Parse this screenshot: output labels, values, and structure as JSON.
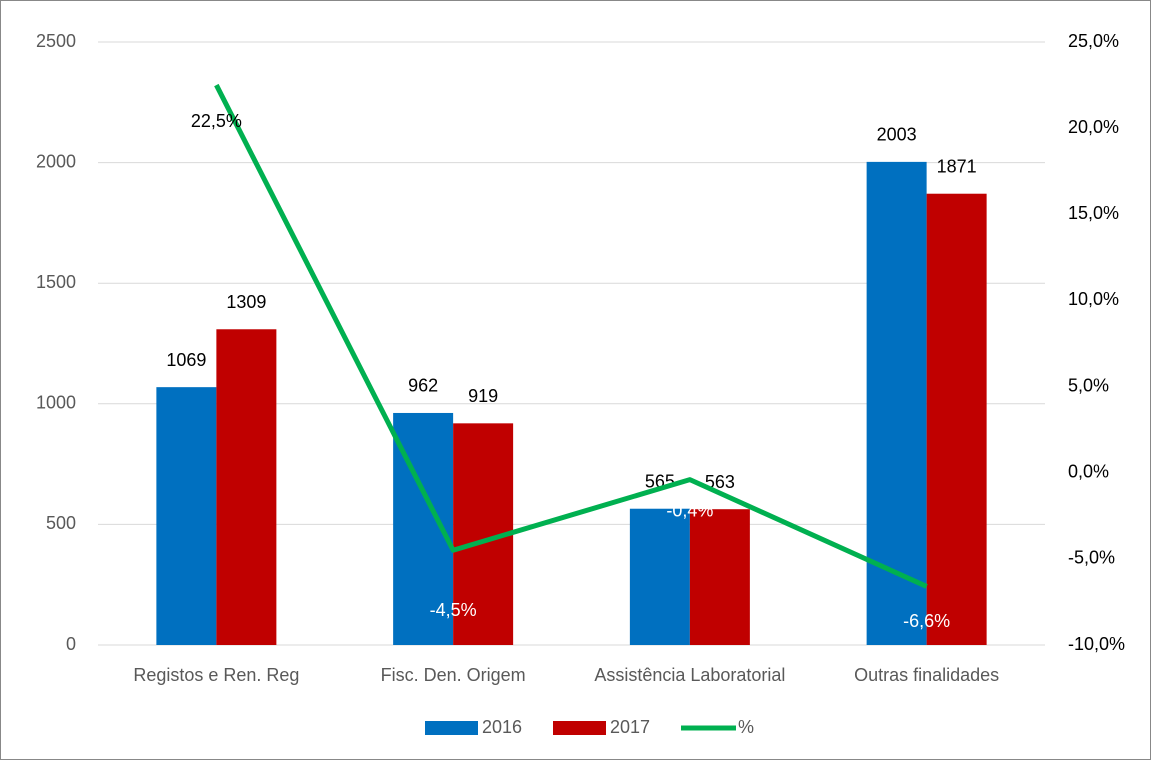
{
  "chart_data": {
    "type": "bar",
    "categories": [
      "Registos e Ren. Reg",
      "Fisc. Den. Origem",
      "Assistência Laboratorial",
      "Outras finalidades"
    ],
    "series": [
      {
        "name": "2016",
        "color": "#0070c0",
        "values": [
          1069,
          962,
          565,
          2003
        ]
      },
      {
        "name": "2017",
        "color": "#c00000",
        "values": [
          1309,
          919,
          563,
          1871
        ]
      },
      {
        "name": "%",
        "color": "#00b050",
        "type": "line",
        "axis": "y2",
        "values": [
          22.5,
          -4.5,
          -0.4,
          -6.6
        ],
        "value_labels": [
          "22,5%",
          "-4,5%",
          "-0,4%",
          "-6,6%"
        ]
      }
    ],
    "ylim": [
      0,
      2500
    ],
    "yticks": [
      0,
      500,
      1000,
      1500,
      2000,
      2500
    ],
    "y2lim": [
      -10,
      25
    ],
    "y2ticks": [
      {
        "value": -10,
        "label": "-10,0%"
      },
      {
        "value": -5,
        "label": "-5,0%"
      },
      {
        "value": 0,
        "label": "0,0%"
      },
      {
        "value": 5,
        "label": "5,0%"
      },
      {
        "value": 10,
        "label": "10,0%"
      },
      {
        "value": 15,
        "label": "15,0%"
      },
      {
        "value": 20,
        "label": "20,0%"
      },
      {
        "value": 25,
        "label": "25,0%"
      }
    ],
    "grid": true,
    "legend": "bottom"
  }
}
